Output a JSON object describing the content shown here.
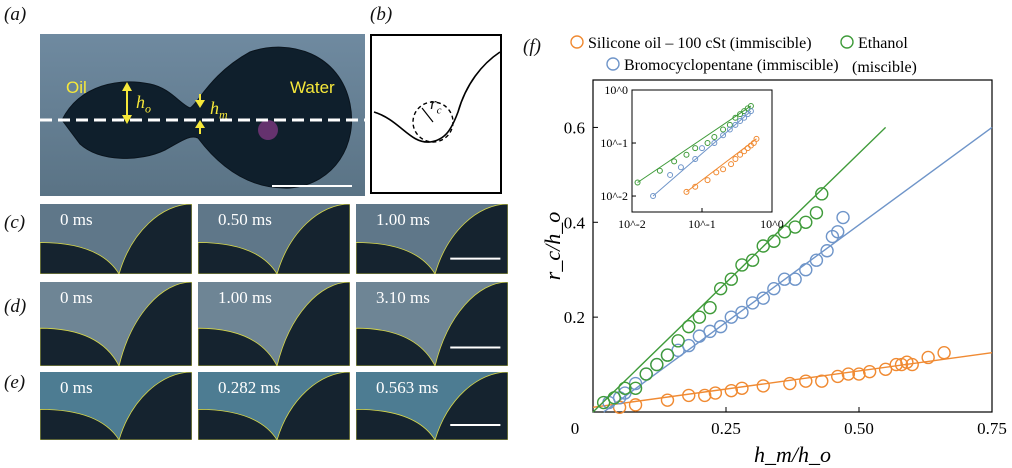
{
  "panels": {
    "a": {
      "label": "(a)",
      "oil_label": "Oil",
      "water_label": "Water",
      "h_o": "h",
      "h_o_sub": "o",
      "h_m": "h",
      "h_m_sub": "m"
    },
    "b": {
      "label": "(b)",
      "rc": "r",
      "rc_sub": "c"
    },
    "c": {
      "label": "(c)",
      "times": [
        "0 ms",
        "0.50 ms",
        "1.00 ms"
      ]
    },
    "d": {
      "label": "(d)",
      "times": [
        "0 ms",
        "1.00 ms",
        "3.10 ms"
      ]
    },
    "e": {
      "label": "(e)",
      "times": [
        "0 ms",
        "0.282 ms",
        "0.563 ms"
      ]
    },
    "f": {
      "label": "(f)"
    }
  },
  "colors": {
    "silicone": "#f08a32",
    "bromo": "#6f95c9",
    "ethanol": "#3f9b3a",
    "annotation": "#f6e83a"
  },
  "chart_data": {
    "type": "scatter",
    "xlabel": "h_m/h_o",
    "ylabel": "r_c/h_o",
    "xlim": [
      0,
      0.75
    ],
    "ylim": [
      0,
      0.7
    ],
    "xticks": [
      "0",
      "0.25",
      "0.50",
      "0.75"
    ],
    "yticks": [
      "0.2",
      "0.4",
      "0.6"
    ],
    "legend": [
      {
        "name": "Silicone oil – 100 cSt (immiscible)",
        "key": "silicone"
      },
      {
        "name": "Bromocyclopentane (immiscible)",
        "key": "bromo"
      },
      {
        "name": "Ethanol",
        "name2": "(miscible)",
        "key": "ethanol"
      }
    ],
    "series": [
      {
        "key": "silicone",
        "fit": [
          [
            0,
            0.01
          ],
          [
            0.75,
            0.125
          ]
        ],
        "x": [
          0.05,
          0.08,
          0.14,
          0.18,
          0.21,
          0.23,
          0.26,
          0.28,
          0.32,
          0.37,
          0.4,
          0.43,
          0.46,
          0.48,
          0.5,
          0.52,
          0.55,
          0.57,
          0.58,
          0.59,
          0.6,
          0.63,
          0.66
        ],
        "y": [
          0.01,
          0.015,
          0.025,
          0.035,
          0.035,
          0.04,
          0.045,
          0.05,
          0.055,
          0.06,
          0.065,
          0.065,
          0.075,
          0.08,
          0.08,
          0.085,
          0.09,
          0.1,
          0.1,
          0.105,
          0.1,
          0.115,
          0.125
        ]
      },
      {
        "key": "bromo",
        "fit": [
          [
            0.02,
            0.0
          ],
          [
            0.75,
            0.6
          ]
        ],
        "x": [
          0.03,
          0.05,
          0.06,
          0.08,
          0.1,
          0.12,
          0.14,
          0.16,
          0.18,
          0.2,
          0.22,
          0.24,
          0.26,
          0.28,
          0.3,
          0.32,
          0.34,
          0.36,
          0.38,
          0.4,
          0.42,
          0.44,
          0.45,
          0.46,
          0.47
        ],
        "y": [
          0.02,
          0.03,
          0.04,
          0.06,
          0.08,
          0.1,
          0.12,
          0.13,
          0.14,
          0.16,
          0.17,
          0.18,
          0.2,
          0.21,
          0.23,
          0.24,
          0.26,
          0.28,
          0.28,
          0.3,
          0.32,
          0.34,
          0.37,
          0.38,
          0.41
        ]
      },
      {
        "key": "ethanol",
        "fit": [
          [
            0.0,
            -0.01
          ],
          [
            0.55,
            0.6
          ]
        ],
        "x": [
          0.02,
          0.04,
          0.06,
          0.08,
          0.1,
          0.12,
          0.14,
          0.16,
          0.18,
          0.2,
          0.22,
          0.24,
          0.26,
          0.28,
          0.3,
          0.32,
          0.34,
          0.36,
          0.38,
          0.4,
          0.42,
          0.43
        ],
        "y": [
          0.02,
          0.03,
          0.05,
          0.05,
          0.08,
          0.1,
          0.12,
          0.15,
          0.18,
          0.2,
          0.22,
          0.26,
          0.28,
          0.31,
          0.32,
          0.35,
          0.36,
          0.38,
          0.39,
          0.4,
          0.42,
          0.46
        ]
      }
    ],
    "inset": {
      "type": "scatter",
      "log_x": true,
      "log_y": true,
      "xlim": [
        0.01,
        1
      ],
      "ylim": [
        0.005,
        1
      ],
      "xticks": [
        "10^-2",
        "10^-1",
        "10^0"
      ],
      "yticks": [
        "10^-2",
        "10^-1",
        "10^0"
      ],
      "series": [
        {
          "key": "ethanol",
          "x": [
            0.012,
            0.025,
            0.04,
            0.06,
            0.08,
            0.12,
            0.15,
            0.2,
            0.25,
            0.3,
            0.35,
            0.4,
            0.45,
            0.5
          ],
          "y": [
            0.018,
            0.03,
            0.045,
            0.06,
            0.08,
            0.1,
            0.13,
            0.18,
            0.22,
            0.3,
            0.35,
            0.4,
            0.45,
            0.5
          ]
        },
        {
          "key": "bromo",
          "x": [
            0.02,
            0.035,
            0.05,
            0.08,
            0.1,
            0.15,
            0.2,
            0.25,
            0.3,
            0.35,
            0.4,
            0.45,
            0.5
          ],
          "y": [
            0.01,
            0.025,
            0.035,
            0.05,
            0.08,
            0.1,
            0.14,
            0.18,
            0.22,
            0.26,
            0.3,
            0.35,
            0.4
          ]
        },
        {
          "key": "silicone",
          "x": [
            0.06,
            0.08,
            0.12,
            0.16,
            0.2,
            0.26,
            0.3,
            0.35,
            0.4,
            0.45,
            0.5,
            0.55,
            0.6
          ],
          "y": [
            0.012,
            0.015,
            0.02,
            0.028,
            0.032,
            0.04,
            0.05,
            0.06,
            0.07,
            0.08,
            0.09,
            0.1,
            0.12
          ]
        }
      ]
    }
  }
}
